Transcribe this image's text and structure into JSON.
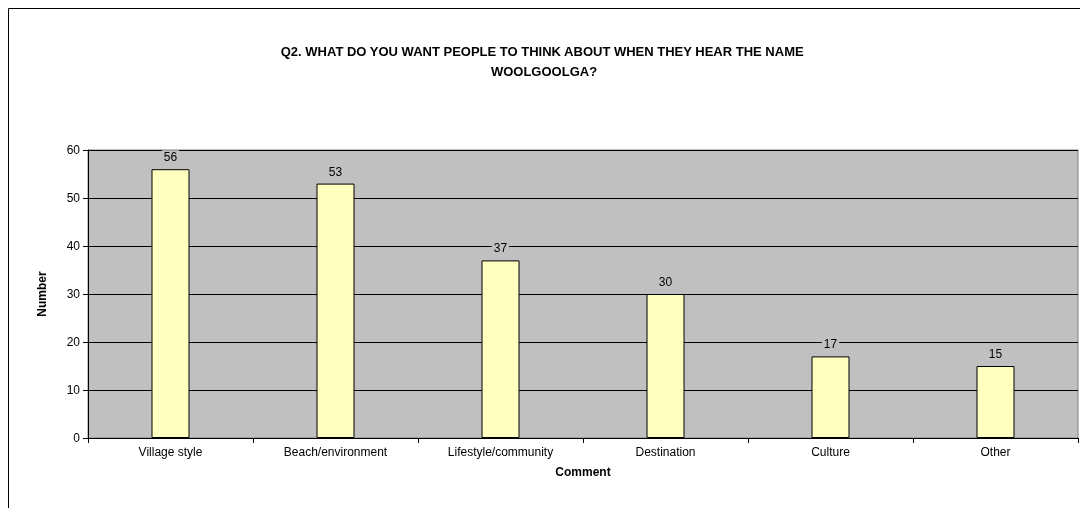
{
  "chart_data": {
    "type": "bar",
    "title": "Q2. WHAT DO YOU WANT PEOPLE TO THINK ABOUT WHEN THEY HEAR THE NAME WOOLGOOLGA?",
    "xlabel": "Comment",
    "ylabel": "Number",
    "categories": [
      "Village style",
      "Beach/environment",
      "Lifestyle/community",
      "Destination",
      "Culture",
      "Other"
    ],
    "values": [
      56,
      53,
      37,
      30,
      17,
      15
    ],
    "color": "#ffffc0",
    "ylim": [
      0,
      60
    ],
    "yticks": [
      0,
      10,
      20,
      30,
      40,
      50,
      60
    ],
    "grid": "y",
    "data_labels": true
  }
}
